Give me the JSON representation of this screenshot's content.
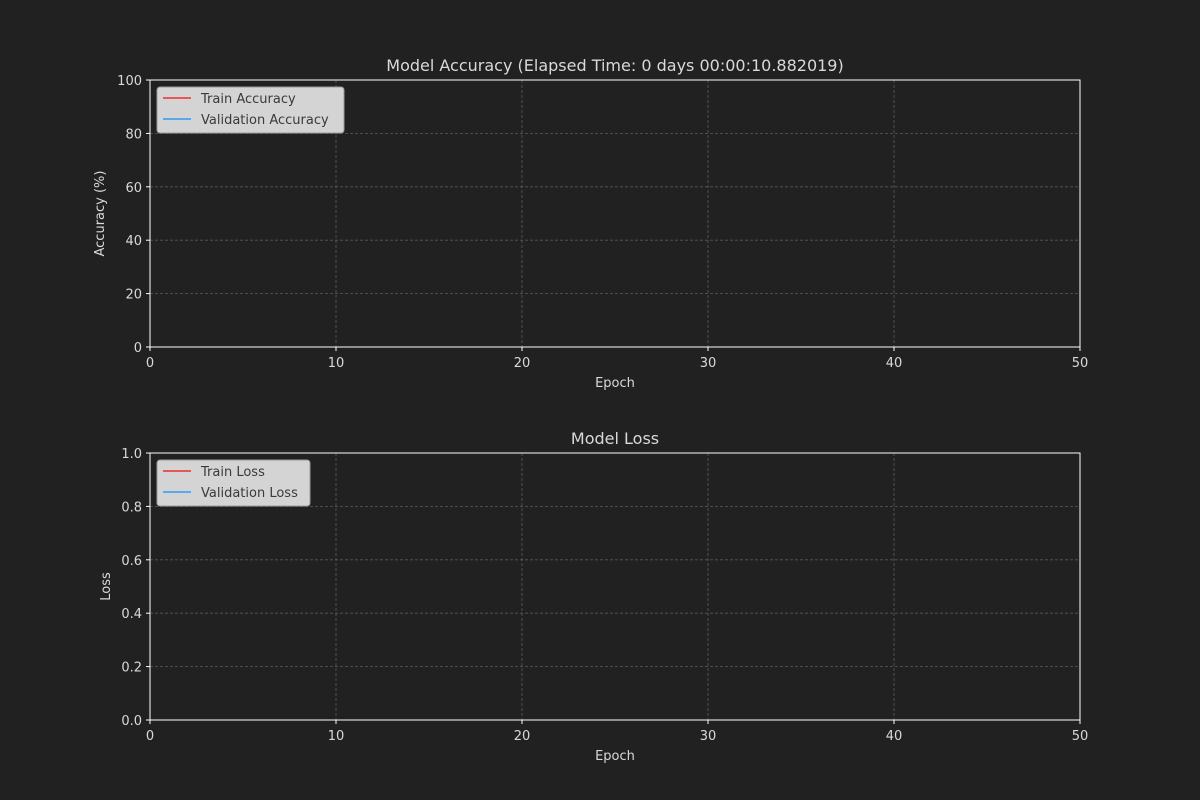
{
  "colors": {
    "background": "#212121",
    "text": "#d9d9d9",
    "axis": "#ffffff",
    "grid": "#5a5a5a",
    "train": "#e8555a",
    "validation": "#5aa8f0",
    "legend_bg": "#d4d4d4",
    "legend_border": "#9a9a9a",
    "legend_text": "#3a3a3a"
  },
  "chart_data": [
    {
      "type": "line",
      "title": "Model Accuracy (Elapsed Time: 0 days 00:00:10.882019)",
      "xlabel": "Epoch",
      "ylabel": "Accuracy (%)",
      "xlim": [
        0,
        50
      ],
      "ylim": [
        0,
        100
      ],
      "xticks": [
        0,
        10,
        20,
        30,
        40,
        50
      ],
      "yticks": [
        0,
        20,
        40,
        60,
        80,
        100
      ],
      "xtick_labels": [
        "0",
        "10",
        "20",
        "30",
        "40",
        "50"
      ],
      "ytick_labels": [
        "0",
        "20",
        "40",
        "60",
        "80",
        "100"
      ],
      "grid": true,
      "grid_style": "dashed",
      "legend_position": "top-left",
      "series": [
        {
          "name": "Train Accuracy",
          "color": "#e8555a",
          "x": [],
          "y": []
        },
        {
          "name": "Validation Accuracy",
          "color": "#5aa8f0",
          "x": [],
          "y": []
        }
      ]
    },
    {
      "type": "line",
      "title": "Model Loss",
      "xlabel": "Epoch",
      "ylabel": "Loss",
      "xlim": [
        0,
        50
      ],
      "ylim": [
        0,
        1
      ],
      "xticks": [
        0,
        10,
        20,
        30,
        40,
        50
      ],
      "yticks": [
        0,
        0.2,
        0.4,
        0.6,
        0.8,
        1.0
      ],
      "xtick_labels": [
        "0",
        "10",
        "20",
        "30",
        "40",
        "50"
      ],
      "ytick_labels": [
        "0.0",
        "0.2",
        "0.4",
        "0.6",
        "0.8",
        "1.0"
      ],
      "grid": true,
      "grid_style": "dashed",
      "legend_position": "top-left",
      "series": [
        {
          "name": "Train Loss",
          "color": "#e8555a",
          "x": [],
          "y": []
        },
        {
          "name": "Validation Loss",
          "color": "#5aa8f0",
          "x": [],
          "y": []
        }
      ]
    }
  ]
}
